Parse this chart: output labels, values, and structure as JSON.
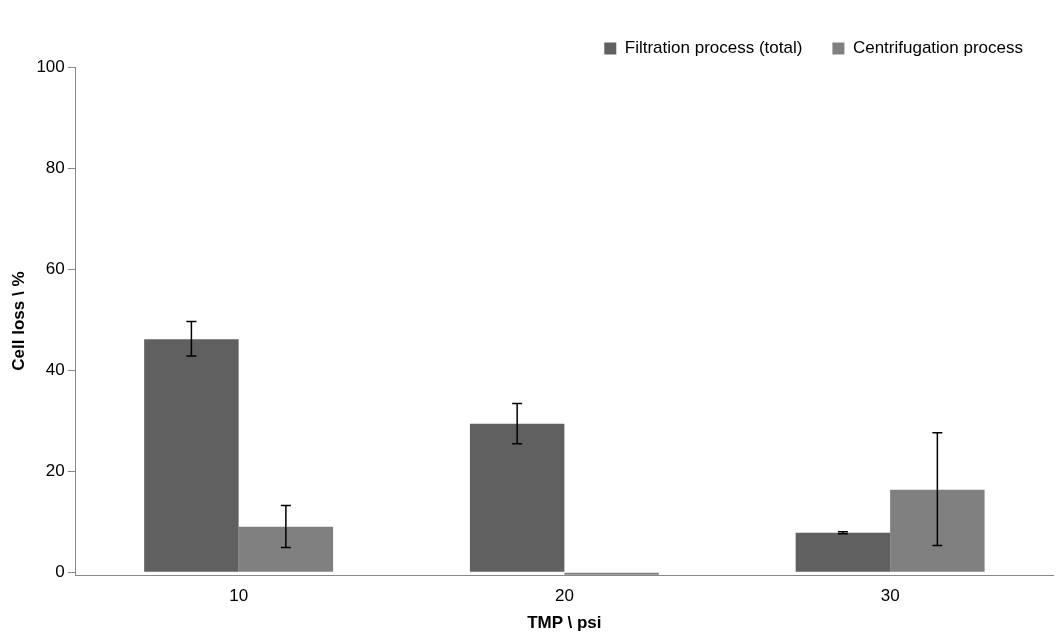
{
  "chart_data": {
    "type": "bar",
    "xlabel": "TMP \\ psi",
    "ylabel": "Cell loss \\ %",
    "categories": [
      "10",
      "20",
      "30"
    ],
    "series": [
      {
        "name": "Filtration process (total)",
        "color": "#606060",
        "values": [
          46.1,
          29.4,
          7.8
        ],
        "errors": [
          [
            42.8,
            49.6
          ],
          [
            25.4,
            33.4
          ],
          [
            7.6,
            8.0
          ]
        ]
      },
      {
        "name": "Centrifugation process",
        "color": "#808080",
        "values": [
          9.0,
          -0.5,
          16.3
        ],
        "errors": [
          [
            4.9,
            13.2
          ],
          null,
          [
            5.3,
            27.6
          ]
        ]
      }
    ],
    "ylim": [
      -0.6,
      100
    ],
    "yticks": [
      0,
      20,
      40,
      60,
      80,
      100
    ],
    "grid": false,
    "legend": "top right"
  }
}
